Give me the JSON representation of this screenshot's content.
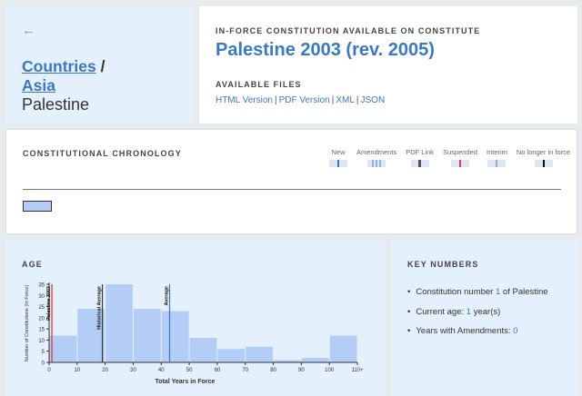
{
  "breadcrumb": {
    "back_icon": "arrow-left-icon",
    "items": [
      {
        "label": "Countries"
      },
      {
        "label": "Asia"
      }
    ],
    "separator": "/",
    "current": "Palestine"
  },
  "constitution": {
    "eyebrow": "IN-FORCE CONSTITUTION AVAILABLE ON CONSTITUTE",
    "title": "Palestine 2003 (rev. 2005)",
    "files_eyebrow": "AVAILABLE FILES",
    "files": [
      "HTML Version",
      "PDF Version",
      "XML",
      "JSON"
    ]
  },
  "chronology": {
    "eyebrow": "CONSTITUTIONAL CHRONOLOGY",
    "legend": [
      {
        "label": "New",
        "mark": "#3b78c4"
      },
      {
        "label": "Amendments",
        "mark": "#8fb0e0"
      },
      {
        "label": "PDF Link",
        "mark": "#556"
      },
      {
        "label": "Suspended",
        "mark": "#e04060"
      },
      {
        "label": "Interim",
        "mark": "#a0b0c0"
      },
      {
        "label": "No longer in force",
        "mark": "#111"
      }
    ]
  },
  "age": {
    "eyebrow": "AGE"
  },
  "chart_data": {
    "type": "bar",
    "xlabel": "Total Years in Force",
    "ylabel": "Number of Constitutions (In Force)",
    "ylim": [
      0,
      35
    ],
    "yticks": [
      "0",
      "5",
      "10",
      "15",
      "20",
      "25",
      "30",
      "35"
    ],
    "xticks": [
      "0",
      "10",
      "20",
      "30",
      "40",
      "50",
      "60",
      "70",
      "80",
      "90",
      "100",
      "110+"
    ],
    "bins": [
      [
        0,
        10
      ],
      [
        10,
        20
      ],
      [
        20,
        30
      ],
      [
        30,
        40
      ],
      [
        40,
        50
      ],
      [
        50,
        60
      ],
      [
        60,
        70
      ],
      [
        70,
        80
      ],
      [
        80,
        90
      ],
      [
        90,
        100
      ],
      [
        100,
        110
      ]
    ],
    "values": [
      12,
      24,
      35,
      24,
      23,
      11,
      6,
      7,
      1,
      2,
      12
    ],
    "bar_color": "#b3cdf6",
    "markers": [
      {
        "label": "Palestine 2003",
        "x": 1,
        "color": "#d9302c"
      },
      {
        "label": "Historical Average",
        "x": 19,
        "color": "#333333"
      },
      {
        "label": "Average",
        "x": 43,
        "color": "#3b78c4"
      }
    ]
  },
  "key_numbers": {
    "eyebrow": "KEY NUMBERS",
    "items": [
      {
        "pre": "Constitution number ",
        "value": "1",
        "post": " of Palestine"
      },
      {
        "pre": "Current age: ",
        "value": "1",
        "post": " year(s)"
      },
      {
        "pre": "Years with Amendments: ",
        "value": "0",
        "post": ""
      }
    ]
  }
}
